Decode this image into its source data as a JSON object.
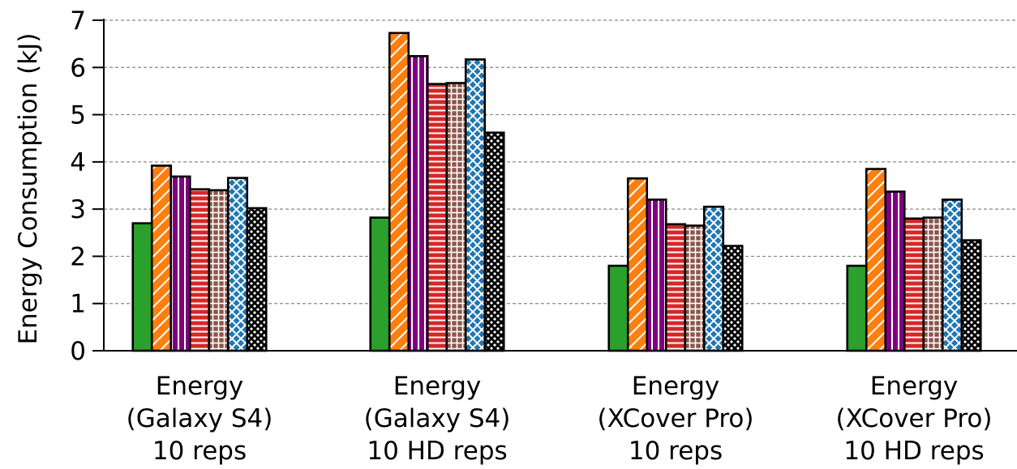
{
  "chart_data": {
    "type": "bar",
    "title": "",
    "xlabel": "",
    "ylabel": "Energy Consumption (kJ)",
    "ylim": [
      0,
      7
    ],
    "yticks": [
      "0",
      "1",
      "2",
      "3",
      "4",
      "5",
      "6",
      "7"
    ],
    "grid": "horizontal dashed",
    "legend": "none",
    "categories": [
      [
        "Energy",
        "(Galaxy S4)",
        "10 reps"
      ],
      [
        "Energy",
        "(Galaxy S4)",
        "10 HD reps"
      ],
      [
        "Energy",
        "(XCover Pro)",
        "10 reps"
      ],
      [
        "Energy",
        "(XCover Pro)",
        "10 HD reps"
      ]
    ],
    "series": [
      {
        "color": "#2ca02c",
        "pattern": "solid",
        "values": [
          2.7,
          2.82,
          1.8,
          1.8
        ]
      },
      {
        "color": "#ff7f0e",
        "pattern": "diagonal-lines",
        "values": [
          3.92,
          6.73,
          3.65,
          3.85
        ]
      },
      {
        "color": "#800080",
        "pattern": "vertical-lines",
        "values": [
          3.69,
          6.24,
          3.2,
          3.37
        ]
      },
      {
        "color": "#d62728",
        "pattern": "horizontal-lines",
        "values": [
          3.42,
          5.65,
          2.68,
          2.8
        ]
      },
      {
        "color": "#8c564b",
        "pattern": "grid",
        "values": [
          3.4,
          5.67,
          2.65,
          2.82
        ]
      },
      {
        "color": "#1f77b4",
        "pattern": "crosshatch",
        "values": [
          3.66,
          6.17,
          3.05,
          3.2
        ]
      },
      {
        "color": "#000000",
        "pattern": "dots",
        "values": [
          3.02,
          4.62,
          2.22,
          2.34
        ]
      }
    ]
  }
}
